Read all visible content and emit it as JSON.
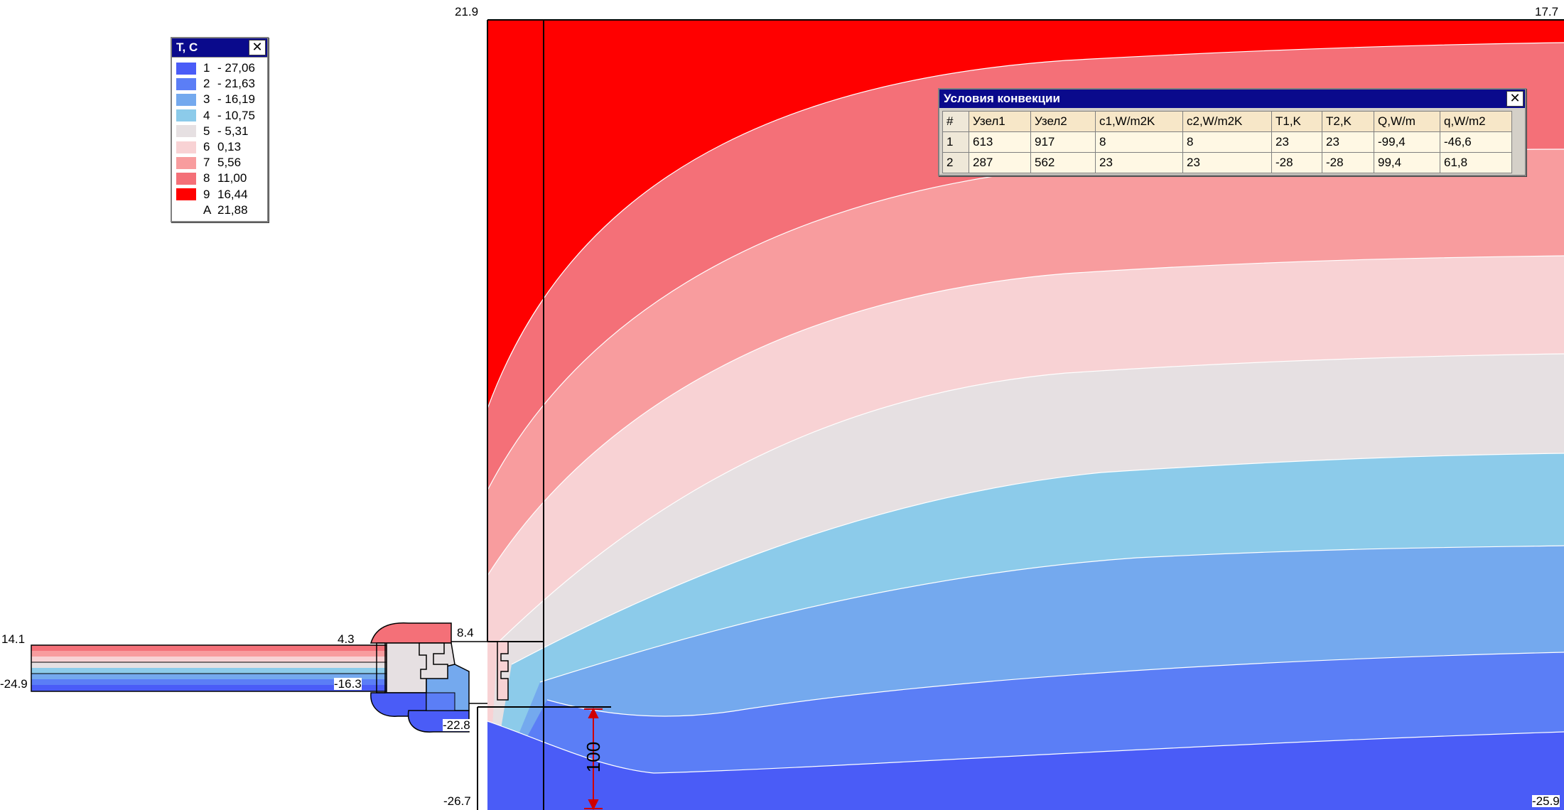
{
  "colors": {
    "band_1": "#4a5cf7",
    "band_2": "#5b7ef6",
    "band_3": "#74a9ee",
    "band_4": "#8ccbea",
    "band_5": "#e6e0e2",
    "band_6": "#f8d2d4",
    "band_7": "#f89c9e",
    "band_8": "#f47078",
    "band_9": "#ff0000",
    "window_title": "#0a0a8c",
    "dimension": "#d00000"
  },
  "plot": {
    "corner_labels": {
      "top_left": "21.9",
      "top_right": "17.7",
      "bottom_left": "-26.7",
      "bottom_right": "-25.9"
    },
    "point_labels": [
      "14.1",
      "-24.9",
      "4.3",
      "-16.3",
      "8.4",
      "-22.8"
    ],
    "dimension_label": "100"
  },
  "legend": {
    "title": "T, C",
    "close_icon": "close-icon",
    "entries": [
      {
        "index": "1",
        "value": "- 27,06",
        "color": "#4a5cf7"
      },
      {
        "index": "2",
        "value": "- 21,63",
        "color": "#5b7ef6"
      },
      {
        "index": "3",
        "value": "- 16,19",
        "color": "#74a9ee"
      },
      {
        "index": "4",
        "value": "- 10,75",
        "color": "#8ccbea"
      },
      {
        "index": "5",
        "value": "- 5,31",
        "color": "#e6e0e2"
      },
      {
        "index": "6",
        "value": "0,13",
        "color": "#f8d2d4"
      },
      {
        "index": "7",
        "value": "5,56",
        "color": "#f89c9e"
      },
      {
        "index": "8",
        "value": "11,00",
        "color": "#f47078"
      },
      {
        "index": "9",
        "value": "16,44",
        "color": "#ff0000"
      },
      {
        "index": "A",
        "value": "21,88",
        "color": ""
      }
    ]
  },
  "convection": {
    "title": "Условия конвекции",
    "close_icon": "close-icon",
    "columns": [
      "#",
      "Узел1",
      "Узел2",
      "c1,W/m2K",
      "c2,W/m2K",
      "T1,K",
      "T2,K",
      "Q,W/m",
      "q,W/m2"
    ],
    "rows": [
      [
        "1",
        "613",
        "917",
        "8",
        "8",
        "23",
        "23",
        "-99,4",
        "-46,6"
      ],
      [
        "2",
        "287",
        "562",
        "23",
        "23",
        "-28",
        "-28",
        "99,4",
        "61,8"
      ]
    ]
  }
}
